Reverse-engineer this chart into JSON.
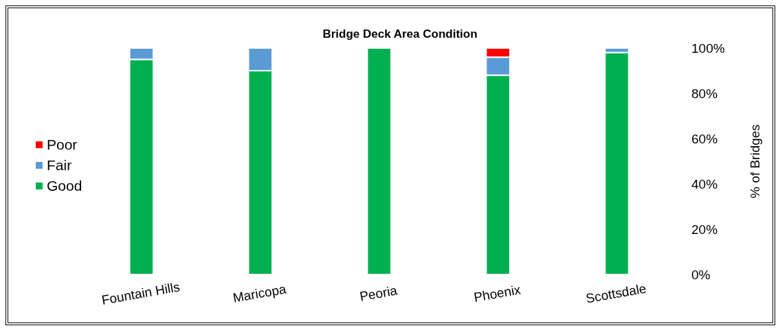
{
  "chart_data": {
    "type": "bar",
    "title": "Bridge Deck Area Condition",
    "ylabel": "% of Bridges",
    "categories": [
      "Fountain Hills",
      "Maricopa",
      "Peoria",
      "Phoenix",
      "Scottsdale"
    ],
    "stacked": true,
    "series": [
      {
        "name": "Good",
        "color": "#00b050",
        "values": [
          95,
          90,
          100,
          88,
          98
        ]
      },
      {
        "name": "Fair",
        "color": "#5b9bd5",
        "values": [
          5,
          10,
          0,
          8,
          2
        ]
      },
      {
        "name": "Poor",
        "color": "#ff0000",
        "values": [
          0,
          0,
          0,
          4,
          0
        ]
      }
    ],
    "ylim": [
      0,
      100
    ],
    "yticks": [
      {
        "value": 0,
        "label": "0%"
      },
      {
        "value": 20,
        "label": "20%"
      },
      {
        "value": 40,
        "label": "40%"
      },
      {
        "value": 60,
        "label": "60%"
      },
      {
        "value": 80,
        "label": "80%"
      },
      {
        "value": 100,
        "label": "100%"
      }
    ],
    "grid": false,
    "legend": "left"
  }
}
